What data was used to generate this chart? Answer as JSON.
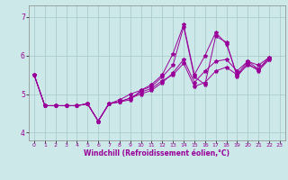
{
  "xlabel": "Windchill (Refroidissement éolien,°C)",
  "bg_color": "#cce8e8",
  "line_color": "#990099",
  "grid_color": "#aacccc",
  "xlim": [
    -0.5,
    23.5
  ],
  "ylim": [
    3.8,
    7.3
  ],
  "xticks": [
    0,
    1,
    2,
    3,
    4,
    5,
    6,
    7,
    8,
    9,
    10,
    11,
    12,
    13,
    14,
    15,
    16,
    17,
    18,
    19,
    20,
    21,
    22,
    23
  ],
  "yticks": [
    4,
    5,
    6,
    7
  ],
  "series": [
    [
      0,
      5.5
    ],
    [
      1,
      4.7
    ],
    [
      2,
      4.7
    ],
    [
      3,
      4.7
    ],
    [
      4,
      4.7
    ],
    [
      5,
      4.75
    ],
    [
      6,
      4.3
    ],
    [
      7,
      4.75
    ],
    [
      8,
      4.8
    ],
    [
      9,
      4.85
    ],
    [
      10,
      5.1
    ],
    [
      11,
      5.2
    ],
    [
      12,
      5.45
    ],
    [
      13,
      5.75
    ],
    [
      14,
      6.75
    ],
    [
      15,
      5.45
    ],
    [
      16,
      5.25
    ],
    [
      17,
      6.5
    ],
    [
      18,
      6.35
    ],
    [
      19,
      5.45
    ],
    [
      20,
      5.8
    ],
    [
      21,
      5.6
    ],
    [
      22,
      5.9
    ]
  ],
  "series2": [
    [
      0,
      5.5
    ],
    [
      1,
      4.7
    ],
    [
      2,
      4.7
    ],
    [
      3,
      4.7
    ],
    [
      4,
      4.7
    ],
    [
      5,
      4.75
    ],
    [
      6,
      4.3
    ],
    [
      7,
      4.75
    ],
    [
      8,
      4.85
    ],
    [
      9,
      5.0
    ],
    [
      10,
      5.1
    ],
    [
      11,
      5.25
    ],
    [
      12,
      5.5
    ],
    [
      13,
      6.05
    ],
    [
      14,
      6.8
    ],
    [
      15,
      5.5
    ],
    [
      16,
      6.0
    ],
    [
      17,
      6.6
    ],
    [
      18,
      6.3
    ],
    [
      19,
      5.5
    ],
    [
      20,
      5.85
    ],
    [
      21,
      5.65
    ],
    [
      22,
      5.95
    ]
  ],
  "series3": [
    [
      0,
      5.5
    ],
    [
      1,
      4.7
    ],
    [
      2,
      4.7
    ],
    [
      3,
      4.7
    ],
    [
      4,
      4.7
    ],
    [
      5,
      4.75
    ],
    [
      6,
      4.3
    ],
    [
      7,
      4.75
    ],
    [
      8,
      4.8
    ],
    [
      9,
      4.9
    ],
    [
      10,
      5.0
    ],
    [
      11,
      5.1
    ],
    [
      12,
      5.3
    ],
    [
      13,
      5.55
    ],
    [
      14,
      5.9
    ],
    [
      15,
      5.3
    ],
    [
      16,
      5.6
    ],
    [
      17,
      5.85
    ],
    [
      18,
      5.9
    ],
    [
      19,
      5.6
    ],
    [
      20,
      5.85
    ],
    [
      21,
      5.75
    ],
    [
      22,
      5.95
    ]
  ],
  "series4": [
    [
      0,
      5.5
    ],
    [
      1,
      4.7
    ],
    [
      2,
      4.7
    ],
    [
      3,
      4.7
    ],
    [
      4,
      4.7
    ],
    [
      5,
      4.75
    ],
    [
      6,
      4.3
    ],
    [
      7,
      4.75
    ],
    [
      8,
      4.8
    ],
    [
      9,
      4.9
    ],
    [
      10,
      5.05
    ],
    [
      11,
      5.15
    ],
    [
      12,
      5.35
    ],
    [
      13,
      5.5
    ],
    [
      14,
      5.8
    ],
    [
      15,
      5.2
    ],
    [
      16,
      5.3
    ],
    [
      17,
      5.6
    ],
    [
      18,
      5.7
    ],
    [
      19,
      5.5
    ],
    [
      20,
      5.75
    ],
    [
      21,
      5.65
    ],
    [
      22,
      5.9
    ]
  ]
}
